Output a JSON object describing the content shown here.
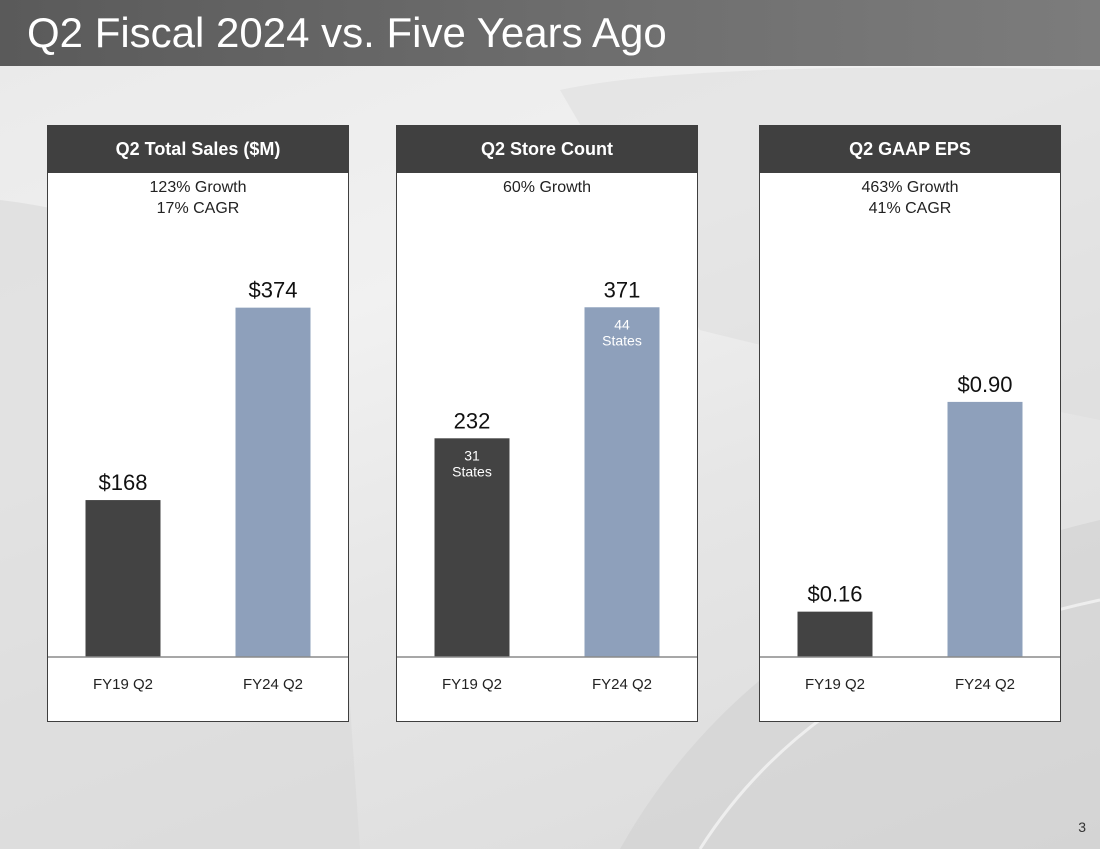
{
  "page": {
    "title": "Q2 Fiscal 2024 vs. Five Years Ago",
    "page_number": "3"
  },
  "colors": {
    "dark_bar": "#434343",
    "light_bar": "#8ea0bb",
    "header_bg": "#404040"
  },
  "chart_data": [
    {
      "type": "bar",
      "title": "Q2 Total Sales ($M)",
      "subtitle_lines": [
        "123% Growth",
        "17% CAGR"
      ],
      "categories": [
        "FY19 Q2",
        "FY24 Q2"
      ],
      "values": [
        168,
        374
      ],
      "value_labels": [
        "$168",
        "$374"
      ],
      "inner_labels": [
        [],
        []
      ],
      "ylim": [
        0,
        440
      ]
    },
    {
      "type": "bar",
      "title": "Q2 Store Count",
      "subtitle_lines": [
        "60% Growth"
      ],
      "categories": [
        "FY19 Q2",
        "FY24 Q2"
      ],
      "values": [
        232,
        371
      ],
      "value_labels": [
        "232",
        "371"
      ],
      "inner_labels": [
        [
          "31",
          "States"
        ],
        [
          "44",
          "States"
        ]
      ],
      "ylim": [
        0,
        436
      ]
    },
    {
      "type": "bar",
      "title": "Q2 GAAP EPS",
      "subtitle_lines": [
        "463% Growth",
        "41% CAGR"
      ],
      "categories": [
        "FY19 Q2",
        "FY24 Q2"
      ],
      "values": [
        0.16,
        0.9
      ],
      "value_labels": [
        "$0.16",
        "$0.90"
      ],
      "inner_labels": [
        [],
        []
      ],
      "ylim": [
        0,
        1.45
      ]
    }
  ]
}
